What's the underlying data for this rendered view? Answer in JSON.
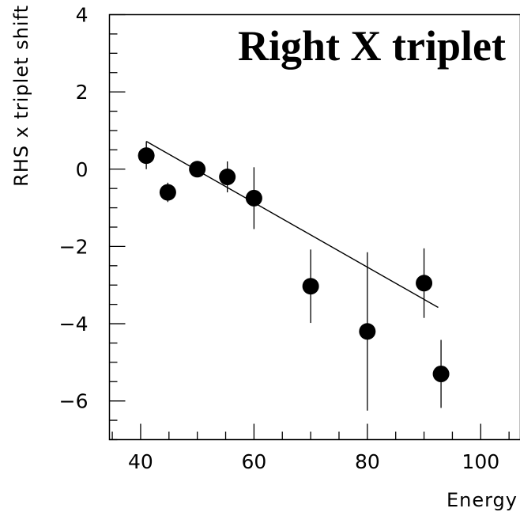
{
  "chart_data": {
    "type": "scatter",
    "title": "Right X triplet",
    "xlabel": "Energy",
    "ylabel": "RHS x triplet shift",
    "xlim": [
      34.5,
      107
    ],
    "ylim": [
      -7,
      4
    ],
    "x_ticks": [
      {
        "value": 40,
        "label": "40"
      },
      {
        "value": 60,
        "label": "60"
      },
      {
        "value": 80,
        "label": "80"
      },
      {
        "value": 100,
        "label": "100"
      }
    ],
    "y_ticks": [
      {
        "value": 4,
        "label": "4"
      },
      {
        "value": 2,
        "label": "2"
      },
      {
        "value": 0,
        "label": "0"
      },
      {
        "value": -2,
        "label": "−2"
      },
      {
        "value": -4,
        "label": "−4"
      },
      {
        "value": -6,
        "label": "−6"
      }
    ],
    "x_minor_step": 5,
    "y_minor_step": 0.5,
    "grid": false,
    "series": [
      {
        "points": [
          {
            "x": 41.0,
            "y": 0.35,
            "err": 0.35
          },
          {
            "x": 44.8,
            "y": -0.6,
            "err": 0.25
          },
          {
            "x": 50.0,
            "y": 0.0,
            "err": 0.15
          },
          {
            "x": 55.3,
            "y": -0.2,
            "err": 0.4
          },
          {
            "x": 60.0,
            "y": -0.75,
            "err": 0.8
          },
          {
            "x": 70.0,
            "y": -3.03,
            "err": 0.95
          },
          {
            "x": 80.0,
            "y": -4.2,
            "err": 2.05
          },
          {
            "x": 90.0,
            "y": -2.95,
            "err": 0.9
          },
          {
            "x": 93.0,
            "y": -5.3,
            "err": 0.88
          }
        ]
      }
    ],
    "fit_line": {
      "x": [
        41.0,
        92.5
      ],
      "y": [
        0.72,
        -3.58
      ]
    }
  }
}
